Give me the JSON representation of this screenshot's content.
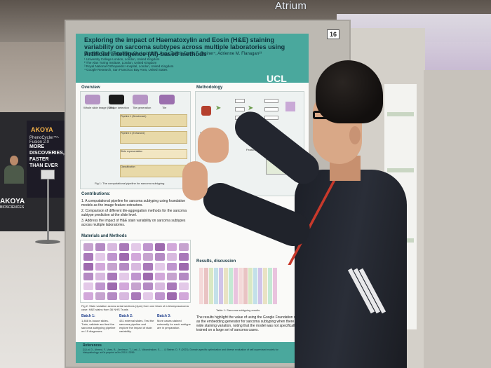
{
  "scene": {
    "venue_sign": "Atrium",
    "board_number": "16"
  },
  "booth": {
    "brand": "AKOYA",
    "banner_lines": [
      "PhenoCycler™-Fusion 2.0"
    ],
    "banner_headline": [
      "MORE",
      "DISCOVERIES,",
      "FASTER",
      "THAN EVER"
    ],
    "logo_text": "AKOYA",
    "logo_sub": "BIOSCIENCES"
  },
  "poster": {
    "title": "Exploring the impact of Haematoxylin and Eosin (H&E) staining variability on sarcoma subtypes across multiple laboratories using Artificial Intelligence (AI)-based methods",
    "authors": "Binghao Chai¹, Tapabrata Chakraborti¹², Anna Tollitt³, David F. Steiner⁴, Adrienne M. Flanagan¹³",
    "affiliations": [
      "¹ University College London, London, United Kingdom",
      "² The Alan Turing Institute, London, United Kingdom",
      "³ Royal National Orthopaedic Hospital, London, United Kingdom",
      "⁴ Google Research, San Francisco Bay Area, United States"
    ],
    "institution": "UCL",
    "overview": {
      "heading": "Overview",
      "thumb_labels": [
        "Whole slide image (WSI)",
        "Tissue detection",
        "Tile generation",
        "Tile"
      ],
      "pipeline_steps": [
        "Pipeline 1 (Benchmark)",
        "Pipeline 2 (Enhanced)",
        "Slide representation",
        "Classification"
      ],
      "caption": "Fig 1: The computational pipeline for sarcoma subtyping"
    },
    "contributions": {
      "heading": "Contributions:",
      "items": [
        "1. A computational pipeline for sarcoma subtyping using foundation models as the image feature extractors.",
        "2. Comparison of different tile-aggregation methods for the sarcoma subtype prediction at the slide level.",
        "3. Address the impact of H&E stain variability on sarcoma subtypes across multiple laboratories."
      ]
    },
    "materials": {
      "heading": "Materials and Methods",
      "caption": "Fig 2: Stain variation across serial sections (4μm) from one block of a leiomyosarcoma case: H&E stains from 36 NHS Trusts",
      "batches": [
        {
          "name": "Batch 1:",
          "text": "1,468 in-house slides. Train, validate and test the sarcoma subtyping pipeline on 15 diagnoses."
        },
        {
          "name": "Batch 2:",
          "text": "431 external slides. Test the sarcoma pipeline and explore the impact of stain variability."
        },
        {
          "name": "Batch 3:",
          "text": "More cases stained externally for each subtype are in preparation."
        }
      ]
    },
    "methodology": {
      "heading": "Methodology",
      "labels": [
        "Slide-level features",
        "Tile-level features",
        "Slide aggregation",
        "Feature extraction"
      ]
    },
    "results": {
      "heading": "Results, discussion",
      "caption": "Table 1: Sarcoma subtyping results",
      "text": "The results highlight the value of using the Google Foundation model as the embedding generator for sarcoma subtyping when there is wide staining variation, noting that the model was not specifically trained on a large set of sarcoma cases."
    },
    "references": {
      "heading": "References",
      "text": "[1] Lai, D., Ahmed, F., Vaes, B., Jamieson, T., Lust, J., Vakanchalam, S., ... & Steiner, D. F. (2023). Domain-specific optimization and diverse evaluation of self-supervised models for histopathology. arXiv preprint arXiv:2310.13259."
    }
  },
  "colors": {
    "poster_header": "#4aa89d",
    "lanyard": "#c8392b",
    "stain_purple": "#b594c4"
  }
}
